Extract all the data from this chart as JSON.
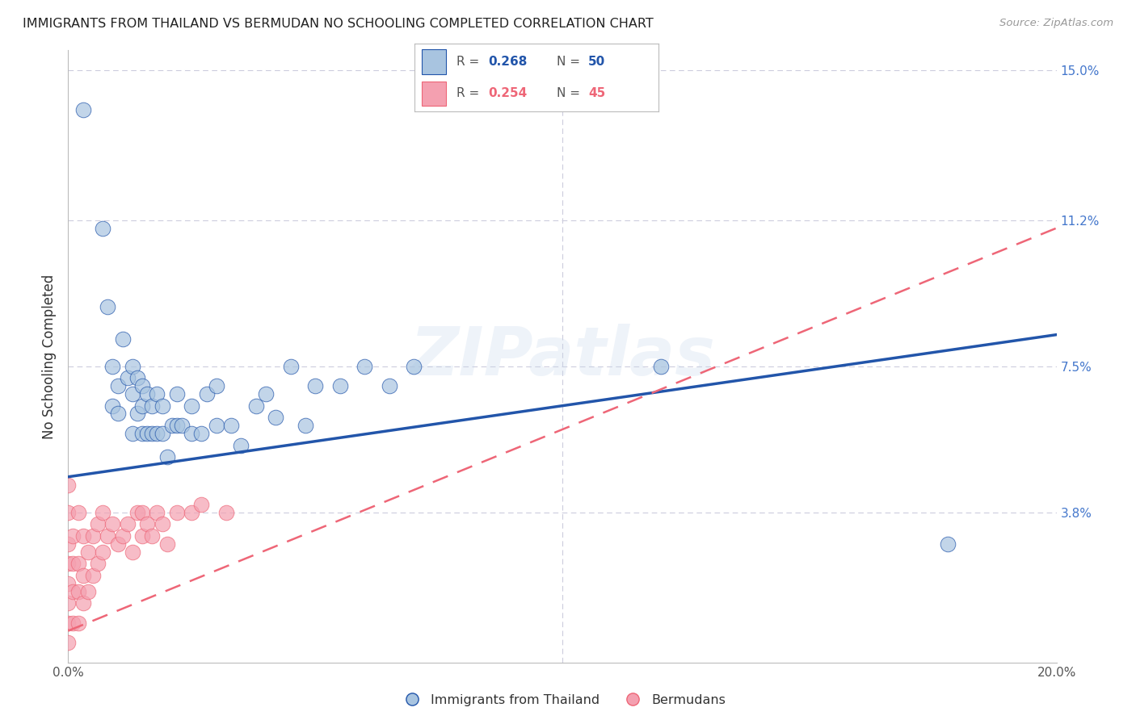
{
  "title": "IMMIGRANTS FROM THAILAND VS BERMUDAN NO SCHOOLING COMPLETED CORRELATION CHART",
  "source": "Source: ZipAtlas.com",
  "ylabel": "No Schooling Completed",
  "xlim": [
    0.0,
    0.2
  ],
  "ylim": [
    0.0,
    0.155
  ],
  "xticks": [
    0.0,
    0.05,
    0.1,
    0.15,
    0.2
  ],
  "xticklabels": [
    "0.0%",
    "",
    "",
    "",
    "20.0%"
  ],
  "ytick_right_labels": [
    "15.0%",
    "11.2%",
    "7.5%",
    "3.8%"
  ],
  "ytick_right_values": [
    0.15,
    0.112,
    0.075,
    0.038
  ],
  "blue_color": "#A8C4E0",
  "pink_color": "#F4A0B0",
  "blue_line_color": "#2255AA",
  "pink_line_color": "#EE6677",
  "background_color": "#FFFFFF",
  "grid_color": "#CCCCDD",
  "thailand_x": [
    0.003,
    0.007,
    0.008,
    0.009,
    0.009,
    0.01,
    0.01,
    0.011,
    0.012,
    0.013,
    0.013,
    0.013,
    0.014,
    0.014,
    0.015,
    0.015,
    0.015,
    0.016,
    0.016,
    0.017,
    0.017,
    0.018,
    0.018,
    0.019,
    0.019,
    0.02,
    0.021,
    0.022,
    0.022,
    0.023,
    0.025,
    0.025,
    0.027,
    0.028,
    0.03,
    0.03,
    0.033,
    0.035,
    0.038,
    0.04,
    0.042,
    0.045,
    0.048,
    0.05,
    0.055,
    0.06,
    0.065,
    0.07,
    0.12,
    0.178
  ],
  "thailand_y": [
    0.14,
    0.11,
    0.09,
    0.075,
    0.065,
    0.07,
    0.063,
    0.082,
    0.072,
    0.058,
    0.068,
    0.075,
    0.063,
    0.072,
    0.058,
    0.065,
    0.07,
    0.058,
    0.068,
    0.058,
    0.065,
    0.058,
    0.068,
    0.058,
    0.065,
    0.052,
    0.06,
    0.06,
    0.068,
    0.06,
    0.058,
    0.065,
    0.058,
    0.068,
    0.06,
    0.07,
    0.06,
    0.055,
    0.065,
    0.068,
    0.062,
    0.075,
    0.06,
    0.07,
    0.07,
    0.075,
    0.07,
    0.075,
    0.075,
    0.03
  ],
  "bermuda_x": [
    0.0,
    0.0,
    0.0,
    0.0,
    0.0,
    0.0,
    0.0,
    0.0,
    0.001,
    0.001,
    0.001,
    0.001,
    0.002,
    0.002,
    0.002,
    0.002,
    0.003,
    0.003,
    0.003,
    0.004,
    0.004,
    0.005,
    0.005,
    0.006,
    0.006,
    0.007,
    0.007,
    0.008,
    0.009,
    0.01,
    0.011,
    0.012,
    0.013,
    0.014,
    0.015,
    0.015,
    0.016,
    0.017,
    0.018,
    0.019,
    0.02,
    0.022,
    0.025,
    0.027,
    0.032
  ],
  "bermuda_y": [
    0.005,
    0.01,
    0.015,
    0.02,
    0.025,
    0.03,
    0.038,
    0.045,
    0.01,
    0.018,
    0.025,
    0.032,
    0.01,
    0.018,
    0.025,
    0.038,
    0.015,
    0.022,
    0.032,
    0.018,
    0.028,
    0.022,
    0.032,
    0.025,
    0.035,
    0.028,
    0.038,
    0.032,
    0.035,
    0.03,
    0.032,
    0.035,
    0.028,
    0.038,
    0.032,
    0.038,
    0.035,
    0.032,
    0.038,
    0.035,
    0.03,
    0.038,
    0.038,
    0.04,
    0.038
  ],
  "watermark": "ZIPatlas"
}
